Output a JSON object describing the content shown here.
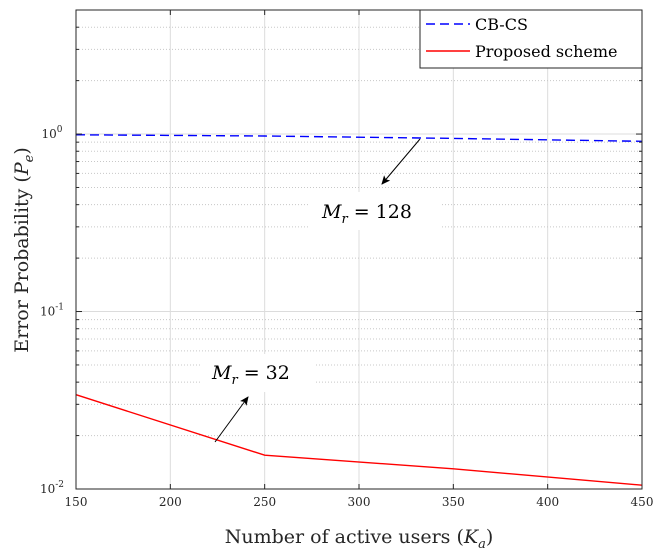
{
  "chart_data": {
    "type": "line",
    "xlabel": "Number of active users (K_a)",
    "ylabel": "Error Probability (P_e)",
    "xlim": [
      150,
      450
    ],
    "ylim": [
      0.01,
      5
    ],
    "yscale": "log",
    "grid": true,
    "legend_position": "top-right",
    "x_ticks": [
      "150",
      "200",
      "250",
      "300",
      "350",
      "400",
      "450"
    ],
    "y_ticks": [
      {
        "base": "10",
        "exp": "-2",
        "value": 0.01
      },
      {
        "base": "10",
        "exp": "-1",
        "value": 0.1
      },
      {
        "base": "10",
        "exp": "0",
        "value": 1
      }
    ],
    "series": [
      {
        "name": "CB-CS",
        "color": "#0000ff",
        "style": "dashed",
        "x": [
          150,
          250,
          350,
          450
        ],
        "y": [
          0.99,
          0.975,
          0.945,
          0.91
        ]
      },
      {
        "name": "Proposed scheme",
        "color": "#ff0000",
        "style": "solid",
        "x": [
          150,
          250,
          350,
          450
        ],
        "y": [
          0.034,
          0.0155,
          0.013,
          0.0105
        ]
      }
    ],
    "annotations": [
      {
        "symbol": "M",
        "sub": "r",
        "rest": " = 128"
      },
      {
        "symbol": "M",
        "sub": "r",
        "rest": " = 32"
      }
    ]
  },
  "labels": {
    "xlabel_prefix": "Number of active users (",
    "xlabel_var": "K",
    "xlabel_sub": "a",
    "xlabel_suffix": ")",
    "ylabel_prefix": "Error Probability (",
    "ylabel_var": "P",
    "ylabel_sub": "e",
    "ylabel_suffix": ")"
  }
}
